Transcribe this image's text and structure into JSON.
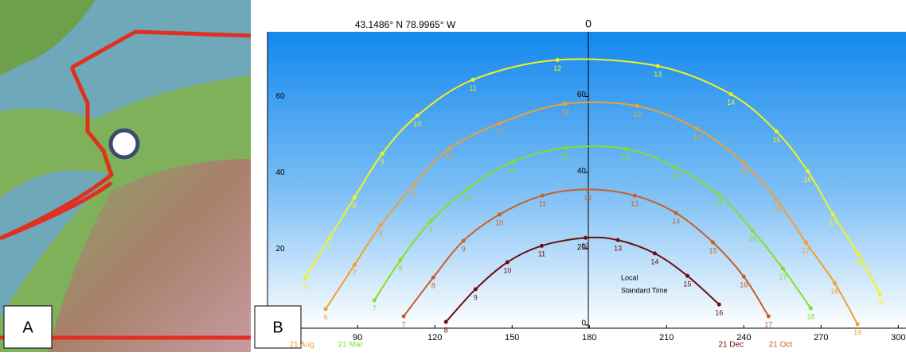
{
  "panel_labels": [
    "A",
    "B"
  ],
  "chart_data": {
    "type": "sunpath",
    "subtitle": "43.1486° N    78.9965° W",
    "north_label": "0",
    "annotation": [
      "Local",
      "Standard Time"
    ],
    "xlim": [
      55,
      303
    ],
    "xticks": [
      90,
      120,
      150,
      180,
      210,
      240,
      270,
      300
    ],
    "ylim": [
      0,
      77
    ],
    "yticks": [
      0,
      20,
      40,
      60
    ],
    "series": [
      {
        "name": null,
        "color": "#f4f21c",
        "hours": [
          "6",
          "7",
          "8",
          "9",
          "10",
          "11",
          "12",
          "13",
          "14",
          "15",
          "16",
          "17",
          "18",
          "19"
        ],
        "x": [
          69.6,
          78.9,
          88.8,
          99.6,
          113.2,
          134.8,
          167.6,
          206.6,
          235,
          252.7,
          264.8,
          274.7,
          284.6,
          292.9
        ],
        "values": [
          12.3,
          22.7,
          33.5,
          45,
          55,
          64.4,
          69.6,
          68,
          60.6,
          50.8,
          40.4,
          29,
          18.5,
          8.1
        ]
      },
      {
        "name": "21 Aug",
        "color": "#f0a030",
        "hours": [
          "6",
          "7",
          "8",
          "9",
          "10",
          "11",
          "12",
          "13",
          "14",
          "15",
          "16",
          "17",
          "18",
          "19"
        ],
        "x": [
          77.6,
          88.8,
          99,
          111.7,
          125.6,
          145.4,
          170.7,
          198.6,
          222,
          240,
          253,
          264.1,
          275.3,
          284.2
        ],
        "values": [
          4.2,
          15.8,
          26.2,
          36.7,
          46.3,
          53,
          58.1,
          57.5,
          51.5,
          42.5,
          32.7,
          21.7,
          11,
          0.2
        ]
      },
      {
        "name": "21 Mar",
        "color": "#84e024",
        "hours": [
          "7",
          "8",
          "9",
          "10",
          "11",
          "12",
          "13",
          "14",
          "15",
          "16",
          "17",
          "18"
        ],
        "x": [
          96.5,
          106.7,
          118.5,
          132.7,
          150.3,
          170.7,
          193.9,
          213.4,
          230.4,
          243.4,
          255.2,
          266
        ],
        "values": [
          6.5,
          17.1,
          27.3,
          35.8,
          42.9,
          46.5,
          46.3,
          41.5,
          34.2,
          24.8,
          14.8,
          4.4
        ]
      },
      {
        "name": "21 Oct",
        "color": "#c8602a",
        "hours": [
          "7",
          "8",
          "9",
          "10",
          "11",
          "12",
          "13",
          "14",
          "15",
          "16",
          "17"
        ],
        "x": [
          107.9,
          119.4,
          131.1,
          145.1,
          161.8,
          179.4,
          197.6,
          213.7,
          228,
          240,
          249.6
        ],
        "values": [
          2.3,
          12.5,
          22.1,
          29,
          34,
          35.6,
          34,
          29.4,
          21.7,
          12.7,
          2.3
        ]
      },
      {
        "name": "21 Dec",
        "color": "#6b1010",
        "hours": [
          "8",
          "9",
          "10",
          "11",
          "12",
          "13",
          "14",
          "15",
          "16"
        ],
        "x": [
          124.3,
          135.8,
          148.2,
          161.5,
          178.5,
          191.1,
          205.4,
          218.1,
          230.4
        ],
        "values": [
          0.8,
          9.4,
          16.5,
          20.8,
          22.9,
          22.3,
          18.8,
          12.9,
          5.4
        ]
      }
    ]
  }
}
